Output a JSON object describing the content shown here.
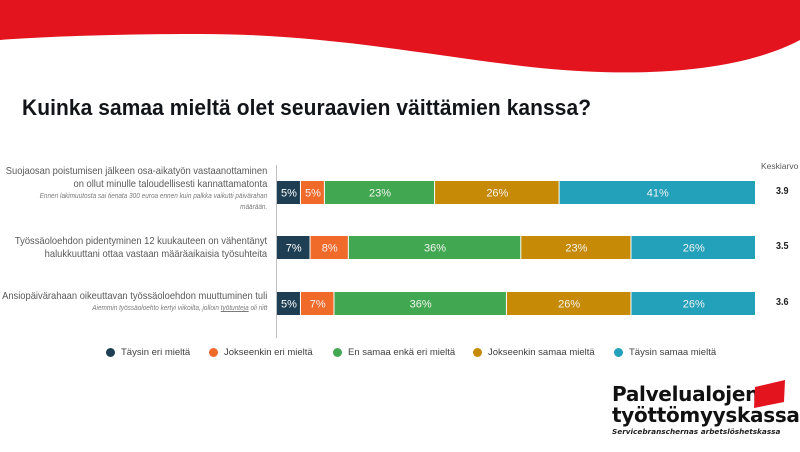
{
  "slide": {
    "title": "Kuinka samaa mieltä olet seuraavien väittämien kanssa?",
    "brand_color": "#E3141E"
  },
  "logo": {
    "line1": "Palvelualojen",
    "line2": "työttömyyskassa",
    "subtitle": "Servicebranschernas arbetslöshetskassa",
    "flag_icon": "red-flag-icon"
  },
  "chart_data": {
    "type": "bar",
    "orientation": "horizontal",
    "stacked": true,
    "percent_stacked": true,
    "title": "Kuinka samaa mieltä olet seuraavien väittämien kanssa?",
    "xlabel": "",
    "ylabel": "",
    "xlim": [
      0,
      100
    ],
    "grid": false,
    "legend_position": "bottom",
    "mean_header": "Keskiarvo",
    "categories": [
      {
        "main": [
          "Suojaosan poistumisen jälkeen osa-aikatyön vastaanottaminen",
          "on ollut minulle taloudellisesti kannattamatonta"
        ],
        "note": [
          "Ennen lakimuutosta sai tienata 300 euroa ennen kuin palkka vaikutti päivärahan",
          "määrään."
        ],
        "mean": "3.9"
      },
      {
        "main": [
          "Työssäoloehdon pidentyminen 12 kuukauteen on vähentänyt",
          "halukkuuttani ottaa vastaan määräaikaisia työsuhteita"
        ],
        "note": [],
        "mean": "3.5"
      },
      {
        "main": [
          "Ansiopäivärahaan oikeuttavan työssäoloehdon muuttuminen tuli"
        ],
        "note_parts": [
          "Aiemmin työssäoloehto kertyi viikoilta, jolloin ",
          "työtunteja",
          " oli riitt"
        ],
        "mean": "3.6"
      }
    ],
    "series": [
      {
        "name": "Täysin eri mieltä",
        "color": "#1E3F53",
        "values": [
          5,
          7,
          5
        ]
      },
      {
        "name": "Jokseenkin eri mieltä",
        "color": "#F06A2A",
        "values": [
          5,
          8,
          7
        ]
      },
      {
        "name": "En samaa enkä eri mieltä",
        "color": "#41A851",
        "values": [
          23,
          36,
          36
        ]
      },
      {
        "name": "Jokseenkin samaa mieltä",
        "color": "#C68A06",
        "values": [
          26,
          23,
          26
        ]
      },
      {
        "name": "Täysin samaa mieltä",
        "color": "#23A0BA",
        "values": [
          41,
          26,
          26
        ]
      }
    ],
    "value_suffix": "%"
  }
}
